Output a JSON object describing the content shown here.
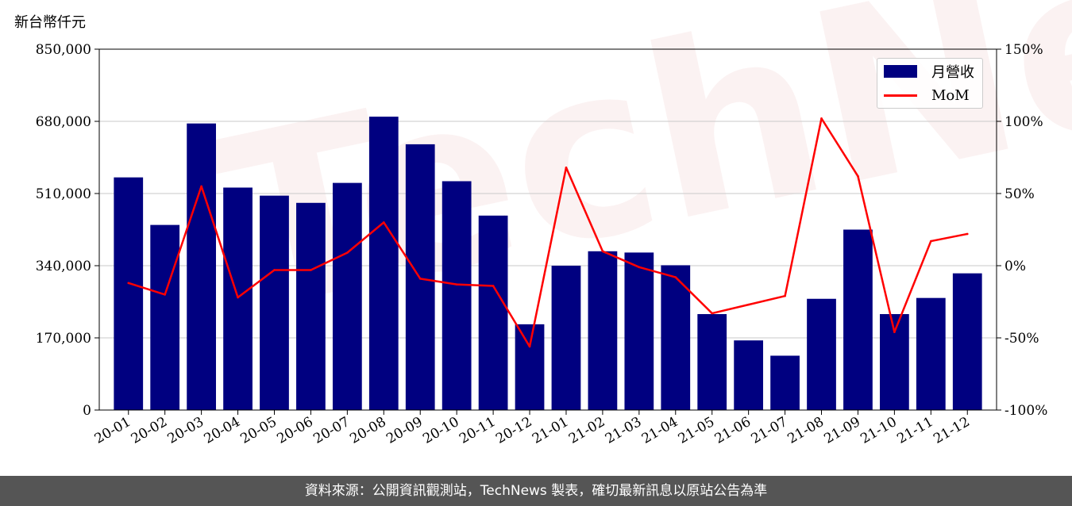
{
  "unit_label": "新台幣仟元",
  "watermark": "TechNews",
  "footer": "資料來源：公開資訊觀測站，TechNews 製表，確切最新訊息以原站公告為準",
  "colors": {
    "bar": "#000080",
    "line": "#ff0000",
    "grid": "#d3d3d3",
    "footer_bg": "#555555"
  },
  "chart_data": {
    "type": "bar",
    "categories": [
      "20-01",
      "20-02",
      "20-03",
      "20-04",
      "20-05",
      "20-06",
      "20-07",
      "20-08",
      "20-09",
      "20-10",
      "20-11",
      "20-12",
      "21-01",
      "21-02",
      "21-03",
      "21-04",
      "21-05",
      "21-06",
      "21-07",
      "21-08",
      "21-09",
      "21-10",
      "21-11",
      "21-12"
    ],
    "series": [
      {
        "name": "月營收",
        "type": "bar",
        "axis": "left",
        "values": [
          548000,
          436000,
          675000,
          524000,
          505000,
          488000,
          535000,
          691000,
          626000,
          539000,
          458000,
          202000,
          340000,
          374000,
          371000,
          341000,
          226000,
          164000,
          128000,
          262000,
          425000,
          226000,
          264000,
          322000
        ]
      },
      {
        "name": "MoM",
        "type": "line",
        "axis": "right",
        "values": [
          -12,
          -20,
          55,
          -22,
          -3,
          -3,
          9,
          30,
          -9,
          -13,
          -14,
          -56,
          68,
          10,
          -1,
          -8,
          -33,
          -27,
          -21,
          102,
          62,
          -46,
          17,
          22
        ]
      }
    ],
    "y_left": {
      "min": 0,
      "max": 850000,
      "ticks": [
        0,
        170000,
        340000,
        510000,
        680000,
        850000
      ],
      "tick_labels": [
        "0",
        "170,000",
        "340,000",
        "510,000",
        "680,000",
        "850,000"
      ]
    },
    "y_right": {
      "min": -100,
      "max": 150,
      "ticks": [
        -100,
        -50,
        0,
        50,
        100,
        150
      ],
      "tick_labels": [
        "-100%",
        "-50%",
        "0%",
        "50%",
        "100%",
        "150%"
      ]
    },
    "grid": "horizontal",
    "legend": "top-right"
  }
}
